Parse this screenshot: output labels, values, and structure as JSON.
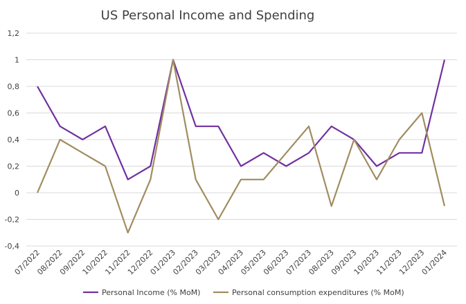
{
  "chart_data": {
    "type": "line",
    "title": "US Personal Income and Spending",
    "xlabel": "",
    "ylabel": "",
    "ylim": [
      -0.4,
      1.2
    ],
    "ytick_labels": [
      "1,2",
      "1",
      "0,8",
      "0,6",
      "0,4",
      "0,2",
      "0",
      "-0,2",
      "-0,4"
    ],
    "ytick_values": [
      1.2,
      1.0,
      0.8,
      0.6,
      0.4,
      0.2,
      0.0,
      -0.2,
      -0.4
    ],
    "grid": true,
    "legend_position": "bottom",
    "categories": [
      "07/2022",
      "08/2022",
      "09/2022",
      "10/2022",
      "11/2022",
      "12/2022",
      "01/2023",
      "02/2023",
      "03/2023",
      "04/2023",
      "05/2023",
      "06/2023",
      "07/2023",
      "08/2023",
      "09/2023",
      "10/2023",
      "11/2023",
      "12/2023",
      "01/2024"
    ],
    "series": [
      {
        "name": "Personal Income (% MoM)",
        "color": "#7030a0",
        "values": [
          0.8,
          0.5,
          0.4,
          0.5,
          0.1,
          0.2,
          1.0,
          0.5,
          0.5,
          0.2,
          0.3,
          0.2,
          0.3,
          0.5,
          0.4,
          0.2,
          0.3,
          0.3,
          1.0
        ]
      },
      {
        "name": "Personal consumption expenditures (% MoM)",
        "color": "#a08c5f",
        "values": [
          0.0,
          0.4,
          0.3,
          0.2,
          -0.3,
          0.1,
          1.0,
          0.1,
          -0.2,
          0.1,
          0.1,
          0.3,
          0.5,
          -0.1,
          0.4,
          0.1,
          0.4,
          0.6,
          -0.1
        ]
      }
    ]
  }
}
